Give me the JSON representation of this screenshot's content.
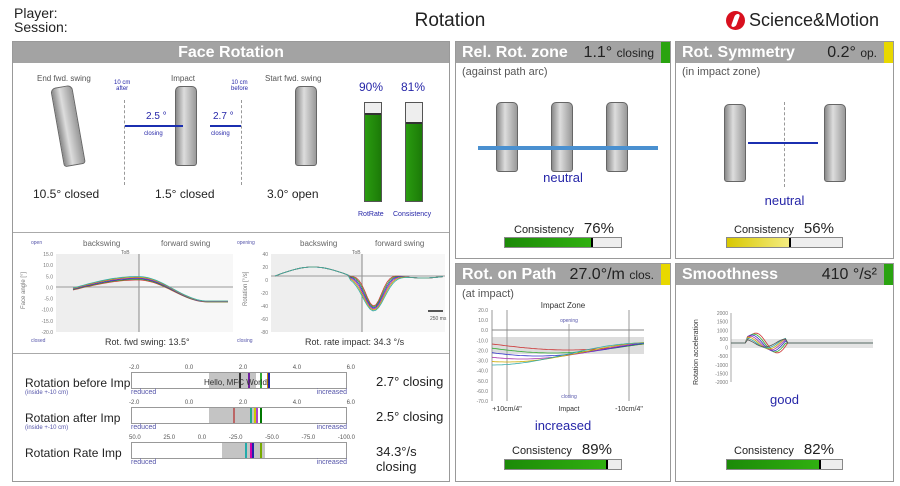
{
  "header": {
    "player_label": "Player:",
    "session_label": "Session:",
    "title": "Rotation",
    "logo_text": "Science&Motion"
  },
  "face_rotation": {
    "title": "Face Rotation",
    "positions": [
      {
        "label": "End fwd. swing",
        "value": "10.5° closed"
      },
      {
        "label": "Impact",
        "value": "1.5° closed"
      },
      {
        "label": "Start fwd. swing",
        "value": "3.0° open"
      }
    ],
    "marker_after": "10 cm\nafter",
    "marker_before": "10 cm\nbefore",
    "arrow_after": {
      "value": "2.5 °",
      "label": "closing"
    },
    "arrow_before": {
      "value": "2.7 °",
      "label": "closing"
    },
    "bars": [
      {
        "label": "RotRate",
        "value_text": "90%",
        "value": 90
      },
      {
        "label": "Consistency",
        "value_text": "81%",
        "value": 81
      }
    ],
    "chart_face": {
      "top_label": "open",
      "bottom_label": "closed",
      "phase_left": "backswing",
      "phase_right": "forward swing",
      "tob": "ToB",
      "ylabel": "Face angle [°]",
      "yticks": [
        "15.0",
        "10.0",
        "5.0",
        "0.0",
        "-5.0",
        "-10.0",
        "-15.0",
        "-20.0"
      ],
      "caption": "Rot. fwd swing: 13.5°"
    },
    "chart_rate": {
      "top_label": "opening",
      "bottom_label": "closing",
      "phase_left": "backswing",
      "phase_right": "forward swing",
      "tob": "ToB",
      "ylabel": "Rotation [°/s]",
      "yticks": [
        "40",
        "20",
        "0",
        "-20",
        "-40",
        "-60",
        "-80"
      ],
      "scale_label": "250 ms",
      "caption": "Rot. rate impact: 34.3 °/s"
    },
    "scales": [
      {
        "label": "Rotation before Imp",
        "sub": "(inside +-10 cm)",
        "ticks": [
          "-2.0",
          "0.0",
          "2.0",
          "4.0",
          "6.0"
        ],
        "left": "reduced",
        "right": "increased",
        "value": "2.7° closing",
        "overlay": "Hello, MFC World!"
      },
      {
        "label": "Rotation after Imp",
        "sub": "(inside +-10 cm)",
        "ticks": [
          "-2.0",
          "0.0",
          "2.0",
          "4.0",
          "6.0"
        ],
        "left": "reduced",
        "right": "increased",
        "value": "2.5° closing"
      },
      {
        "label": "Rotation Rate Imp",
        "sub": "",
        "ticks": [
          "50.0",
          "25.0",
          "0.0",
          "-25.0",
          "-50.0",
          "-75.0",
          "-100.0"
        ],
        "left": "reduced",
        "right": "increased",
        "value": "34.3°/s closing"
      }
    ]
  },
  "rel_rot_zone": {
    "title": "Rel. Rot. zone",
    "value": "1.1°",
    "unit": "closing",
    "subtitle": "(against path arc)",
    "verdict": "neutral",
    "consistency_label": "Consistency",
    "consistency_text": "76%",
    "consistency": 76,
    "flag_color": "#2aa310"
  },
  "rot_symmetry": {
    "title": "Rot. Symmetry",
    "value": "0.2°",
    "unit": "op.",
    "subtitle": "(in impact zone)",
    "verdict": "neutral",
    "consistency_label": "Consistency",
    "consistency_text": "56%",
    "consistency": 56,
    "flag_color": "#e8d800"
  },
  "rot_on_path": {
    "title": "Rot. on Path",
    "value": "27.0°/m",
    "unit": "clos.",
    "subtitle": "(at impact)",
    "chart_title": "Impact Zone",
    "top_label": "opening",
    "bottom_label": "closing",
    "yticks": [
      "20.0",
      "10.0",
      "0.0",
      "-10.0",
      "-20.0",
      "-30.0",
      "-40.0",
      "-50.0",
      "-60.0",
      "-70.0"
    ],
    "xticks": [
      "+10cm/4\"",
      "Impact",
      "-10cm/4\""
    ],
    "verdict": "increased",
    "consistency_label": "Consistency",
    "consistency_text": "89%",
    "consistency": 89,
    "flag_color": "#e8d800"
  },
  "smoothness": {
    "title": "Smoothness",
    "value": "410 °/s²",
    "ylabel": "Rotation acceleration",
    "yticks": [
      "2000",
      "1500",
      "1000",
      "500",
      "0",
      "-500",
      "-1000",
      "-1500",
      "-2000"
    ],
    "verdict": "good",
    "consistency_label": "Consistency",
    "consistency_text": "82%",
    "consistency": 82,
    "flag_color": "#2aa310"
  }
}
